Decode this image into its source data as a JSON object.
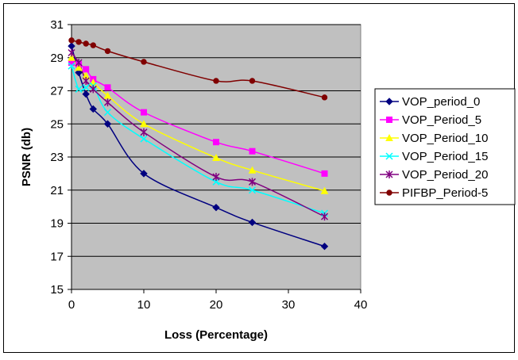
{
  "chart_data": {
    "type": "line",
    "title": "",
    "xlabel": "Loss (Percentage)",
    "ylabel": "PSNR (db)",
    "xlim": [
      0,
      40
    ],
    "ylim": [
      15,
      31
    ],
    "x_ticks": [
      0,
      10,
      20,
      30,
      40
    ],
    "y_ticks": [
      15,
      17,
      19,
      21,
      23,
      25,
      27,
      29,
      31
    ],
    "grid": "horizontal",
    "plot_background": "#c0c0c0",
    "legend_position": "right",
    "series": [
      {
        "name": "VOP_period_0",
        "color": "#000080",
        "marker": "diamond",
        "x": [
          0,
          1,
          2,
          3,
          5,
          10,
          20,
          25,
          35
        ],
        "y": [
          29.7,
          28.1,
          26.8,
          25.9,
          25.0,
          22.0,
          19.95,
          19.05,
          17.6
        ]
      },
      {
        "name": "VOP_Period_5",
        "color": "#ff00ff",
        "marker": "square",
        "x": [
          0,
          1,
          2,
          3,
          5,
          10,
          20,
          25,
          35
        ],
        "y": [
          28.7,
          28.6,
          28.3,
          27.7,
          27.2,
          25.7,
          23.9,
          23.35,
          22.0
        ]
      },
      {
        "name": "VOP_Period_10",
        "color": "#ffff00",
        "marker": "triangle",
        "x": [
          0,
          1,
          2,
          3,
          5,
          10,
          20,
          25,
          35
        ],
        "y": [
          29.0,
          28.4,
          27.9,
          27.5,
          26.7,
          25.0,
          22.95,
          22.2,
          20.95
        ]
      },
      {
        "name": "VOP_Period_15",
        "color": "#00ffff",
        "marker": "x",
        "x": [
          0,
          1,
          2,
          3,
          5,
          10,
          20,
          25,
          35
        ],
        "y": [
          28.5,
          27.1,
          27.2,
          27.3,
          25.7,
          24.1,
          21.5,
          21.0,
          19.6
        ]
      },
      {
        "name": "VOP_Period_20",
        "color": "#800080",
        "marker": "star",
        "x": [
          0,
          1,
          2,
          3,
          5,
          10,
          20,
          25,
          35
        ],
        "y": [
          29.3,
          28.7,
          27.6,
          27.1,
          26.3,
          24.5,
          21.8,
          21.5,
          19.4
        ]
      },
      {
        "name": "PIFBP_Period-5",
        "color": "#800000",
        "marker": "circle",
        "x": [
          0,
          1,
          2,
          3,
          5,
          10,
          20,
          25,
          35
        ],
        "y": [
          30.05,
          29.95,
          29.85,
          29.75,
          29.4,
          28.75,
          27.6,
          27.6,
          26.6
        ]
      }
    ]
  }
}
